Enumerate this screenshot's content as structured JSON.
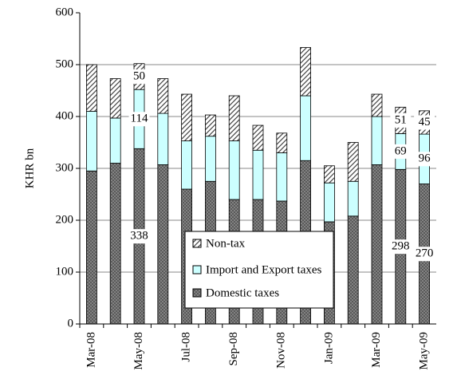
{
  "chart_data": {
    "type": "stacked-bar",
    "y_axis_label": "KHR bn",
    "categories": [
      "Mar-08",
      null,
      "May-08",
      null,
      "Jul-08",
      null,
      "Sep-08",
      null,
      "Nov-08",
      null,
      "Jan-09",
      null,
      "Mar-09",
      null,
      "May-09"
    ],
    "series": [
      {
        "name": "Domestic taxes",
        "color": "#808080",
        "values": [
          295,
          310,
          338,
          307,
          260,
          275,
          240,
          240,
          237,
          315,
          197,
          208,
          307,
          298,
          270
        ],
        "value_labels": [
          null,
          null,
          "338",
          null,
          null,
          null,
          null,
          null,
          null,
          null,
          null,
          null,
          null,
          "298",
          "270"
        ]
      },
      {
        "name": "Import and Export taxes",
        "color": "#ccffff",
        "values": [
          115,
          87,
          114,
          99,
          93,
          87,
          113,
          95,
          93,
          125,
          75,
          67,
          93,
          69,
          96
        ],
        "value_labels": [
          null,
          null,
          "114",
          null,
          null,
          null,
          null,
          null,
          null,
          null,
          null,
          null,
          null,
          "69",
          "96"
        ]
      },
      {
        "name": "Non-tax",
        "color": "#ffffff",
        "values": [
          90,
          76,
          50,
          67,
          90,
          41,
          87,
          48,
          38,
          93,
          33,
          75,
          43,
          51,
          45
        ],
        "value_labels": [
          null,
          null,
          "50",
          null,
          null,
          null,
          null,
          null,
          null,
          null,
          null,
          null,
          null,
          "51",
          "45"
        ]
      }
    ],
    "ylim": [
      0,
      600
    ],
    "yticks": [
      0,
      100,
      200,
      300,
      400,
      500,
      600
    ],
    "grid": true
  }
}
